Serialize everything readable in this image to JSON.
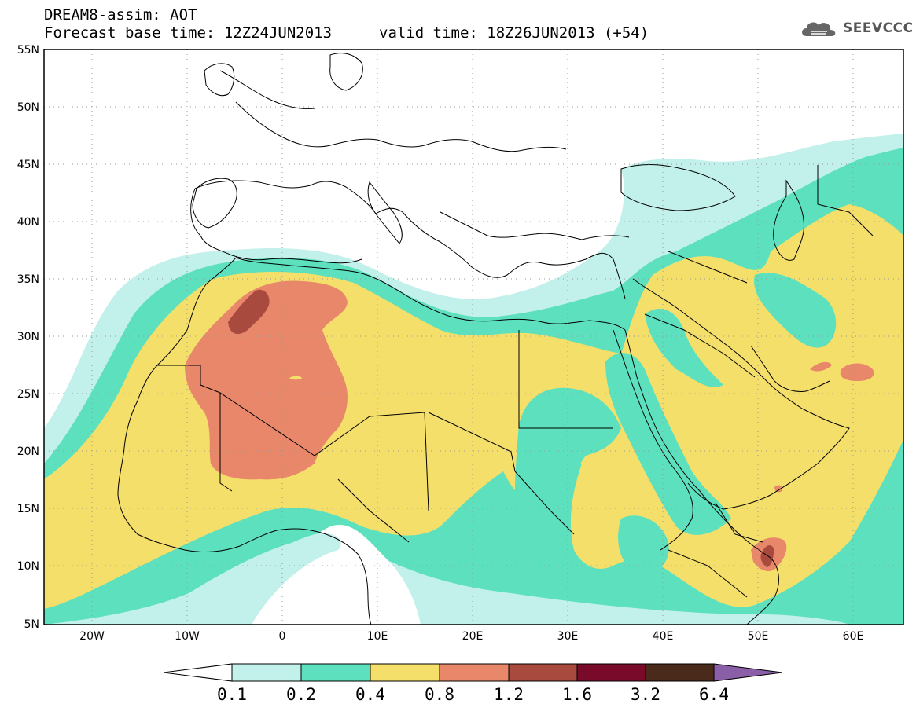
{
  "header": {
    "title": "DREAM8-assim: AOT",
    "base_time": "Forecast base time: 12Z24JUN2013",
    "valid_time": "valid time: 18Z26JUN2013 (+54)",
    "logo_text": "SEEVCCC"
  },
  "map": {
    "lat_labels": [
      "55N",
      "50N",
      "45N",
      "40N",
      "35N",
      "30N",
      "25N",
      "20N",
      "15N",
      "10N",
      "5N"
    ],
    "lon_labels": [
      "20W",
      "10W",
      "0",
      "10E",
      "20E",
      "30E",
      "40E",
      "50E",
      "60E"
    ],
    "extent": {
      "lon_min": -25,
      "lon_max": 65,
      "lat_min": 5,
      "lat_max": 55
    },
    "grid": "dotted"
  },
  "colorbar": {
    "labels": [
      "0.1",
      "0.2",
      "0.4",
      "0.8",
      "1.2",
      "1.6",
      "3.2",
      "6.4"
    ],
    "colors": [
      "#ffffff",
      "#c2f0ea",
      "#5ce0bd",
      "#f5df6b",
      "#e8876a",
      "#a94a3f",
      "#7a0a2a",
      "#4a2a1a",
      "#8a5fa8"
    ]
  },
  "legend_colors": {
    "aot_0_1": "#c2f0ea",
    "aot_0_2": "#5ce0bd",
    "aot_0_4": "#f5df6b",
    "aot_0_8": "#e8876a",
    "aot_1_2": "#a94a3f"
  }
}
